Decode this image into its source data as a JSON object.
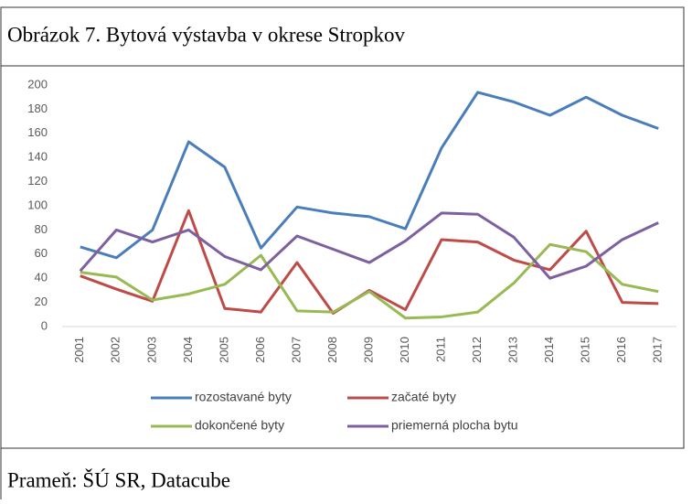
{
  "chart_data": {
    "type": "line",
    "title": "Obrázok 7. Bytová výstavba v okrese Stropkov",
    "source": "Prameň: ŠÚ SR, Datacube",
    "categories": [
      "2001",
      "2002",
      "2003",
      "2004",
      "2005",
      "2006",
      "2007",
      "2008",
      "2009",
      "2010",
      "2011",
      "2012",
      "2013",
      "2014",
      "2015",
      "2016",
      "2017"
    ],
    "series": [
      {
        "name": "rozostavané byty",
        "color": "#4a7ebb",
        "values": [
          66,
          57,
          80,
          153,
          132,
          65,
          99,
          94,
          91,
          81,
          148,
          194,
          186,
          175,
          190,
          175,
          164
        ]
      },
      {
        "name": "začaté byty",
        "color": "#be4b48",
        "values": [
          42,
          31,
          21,
          96,
          15,
          12,
          53,
          11,
          30,
          14,
          72,
          70,
          55,
          47,
          79,
          20,
          19
        ]
      },
      {
        "name": "dokončené byty",
        "color": "#98b954",
        "values": [
          45,
          41,
          22,
          27,
          35,
          59,
          13,
          12,
          29,
          7,
          8,
          12,
          36,
          68,
          62,
          35,
          29
        ]
      },
      {
        "name": "priemerná plocha bytu",
        "color": "#7d60a0",
        "values": [
          46,
          80,
          70,
          80,
          58,
          47,
          75,
          64,
          53,
          71,
          94,
          93,
          74,
          40,
          50,
          72,
          86
        ]
      }
    ],
    "ylim": [
      0,
      200
    ],
    "yticks": [
      0,
      20,
      40,
      60,
      80,
      100,
      120,
      140,
      160,
      180,
      200
    ],
    "grid": false
  }
}
